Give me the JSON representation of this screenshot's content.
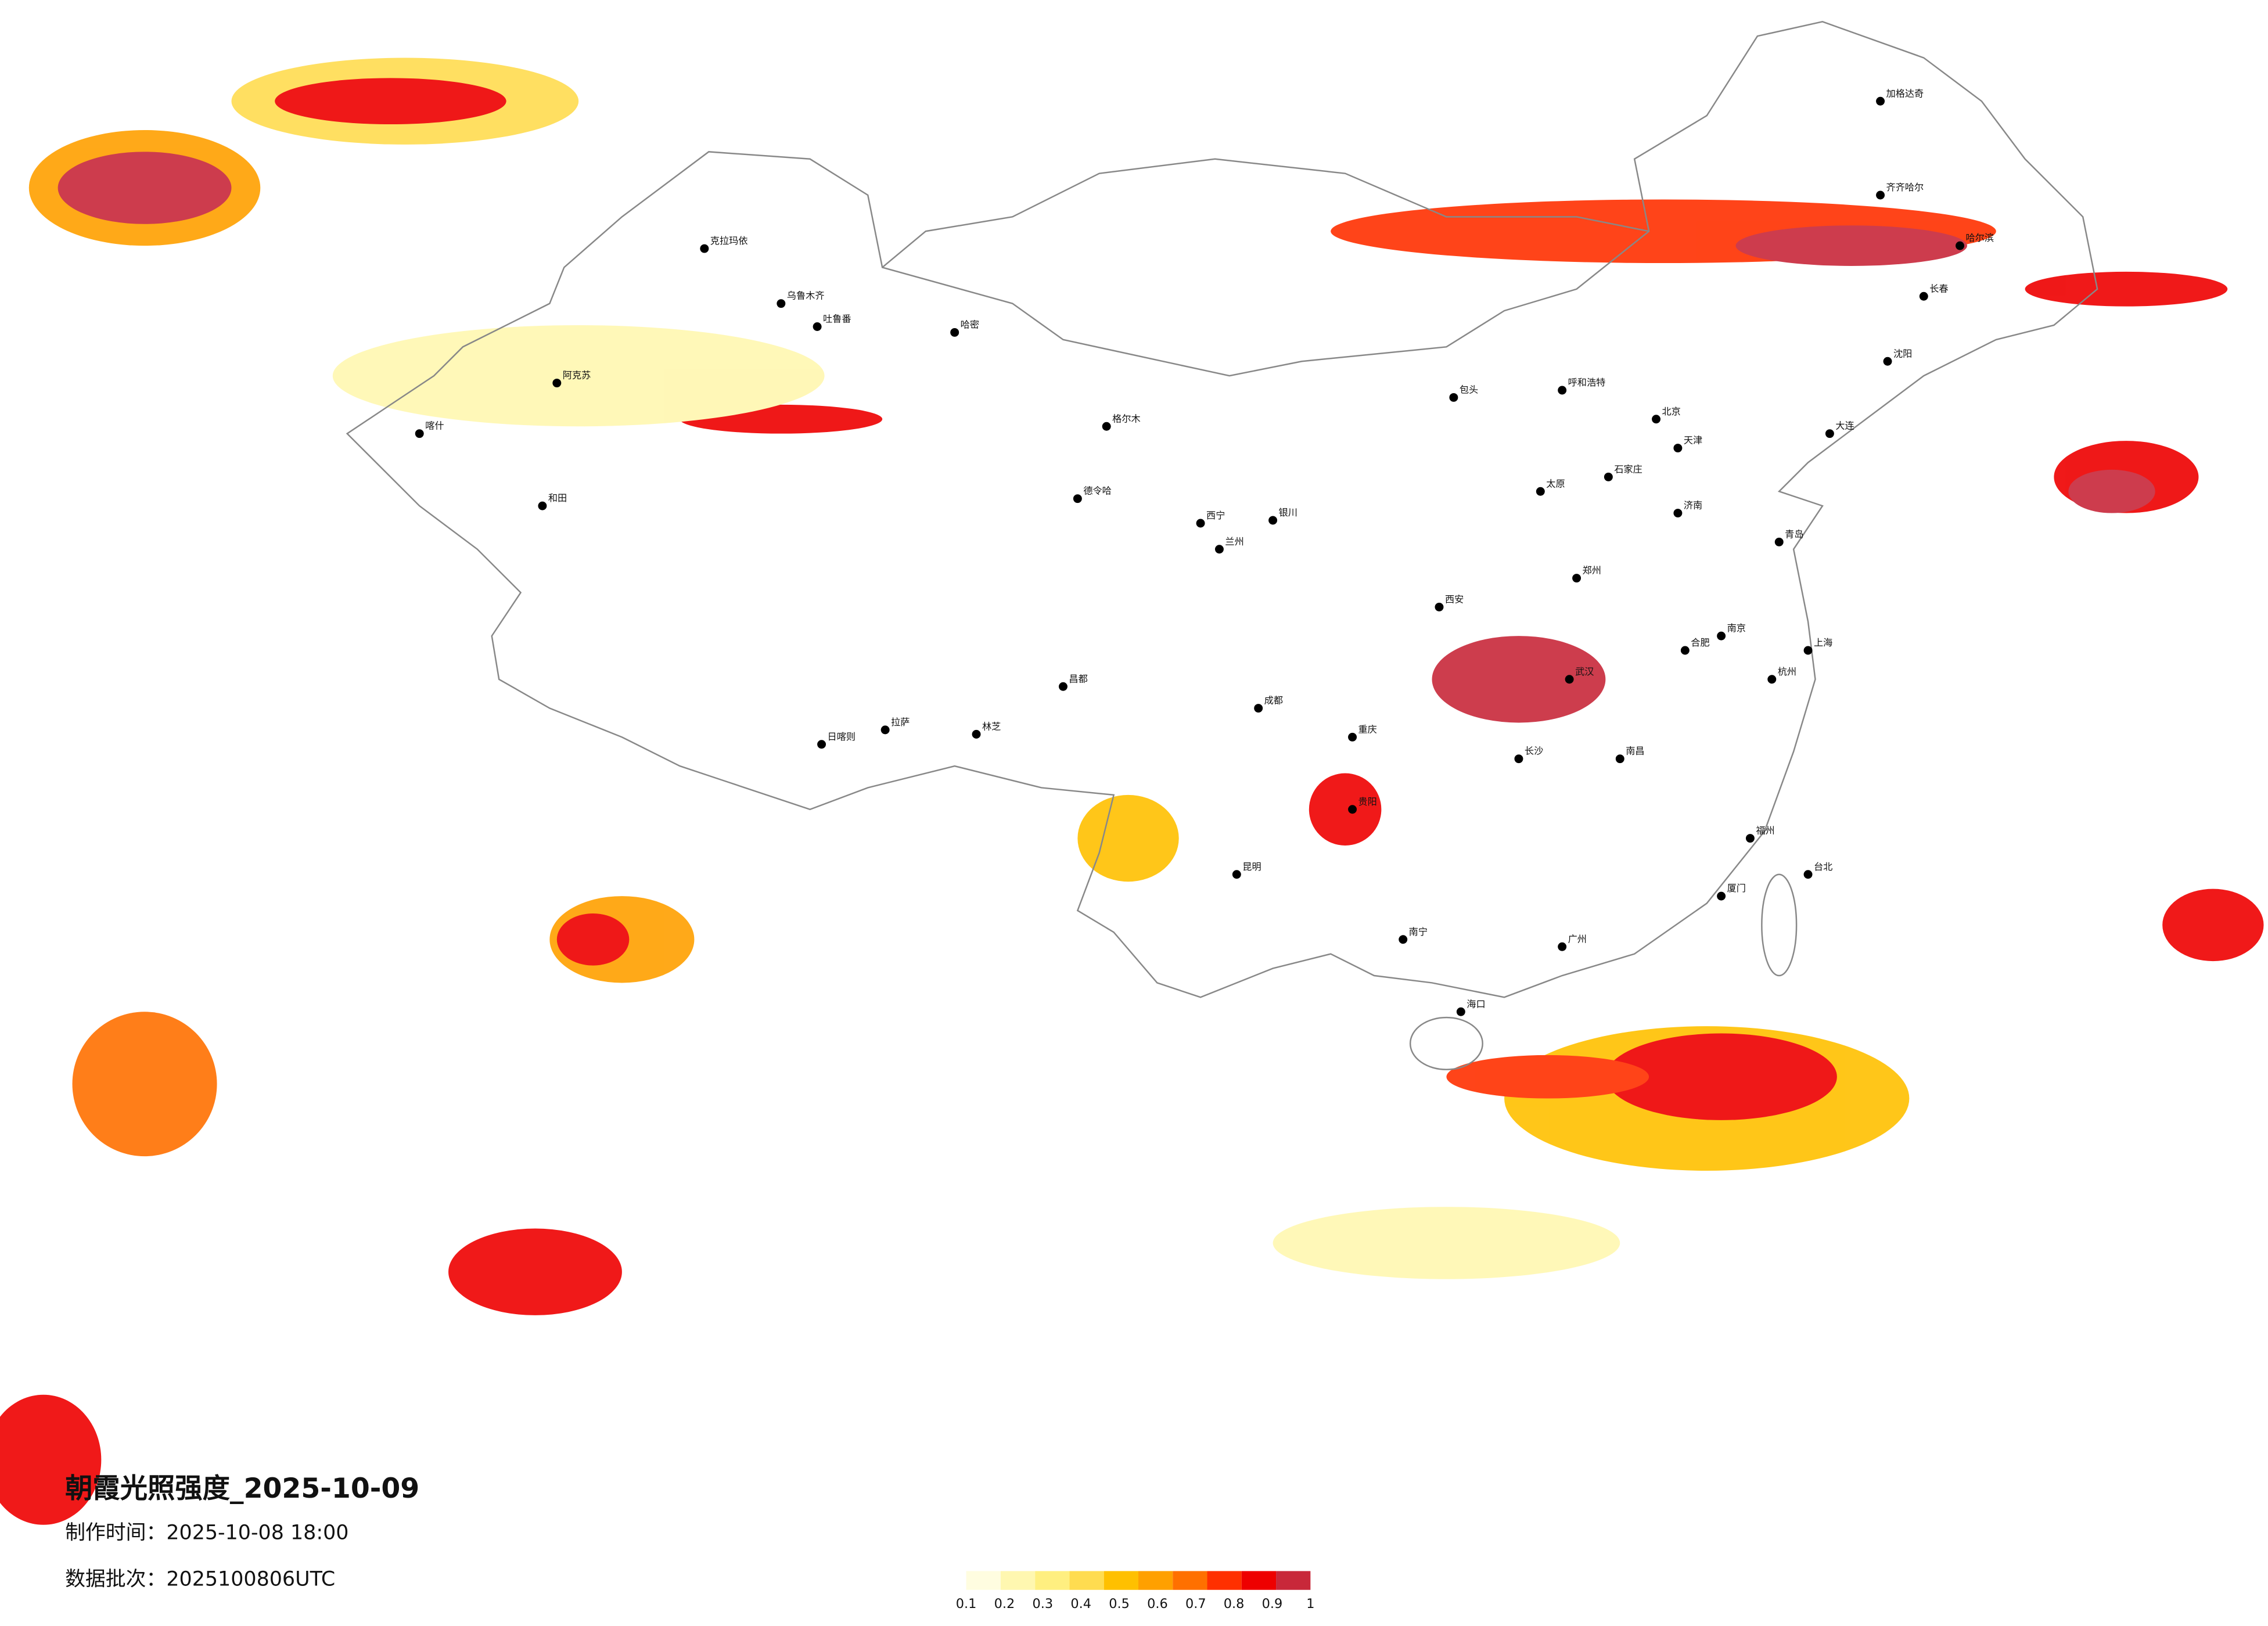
{
  "title": "朝霞光照强度_2025-10-09",
  "made_time": "制作时间：2025-10-08 18:00",
  "data_batch": "数据批次：2025100806UTC",
  "legend": {
    "ticks": [
      0.1,
      0.2,
      0.3,
      0.4,
      0.5,
      0.6,
      0.7,
      0.8,
      0.9,
      1
    ],
    "colors": [
      "#fffde0",
      "#fff7b0",
      "#ffef80",
      "#ffdc50",
      "#ffc000",
      "#ffa000",
      "#ff7000",
      "#ff3000",
      "#ee0000",
      "#c8283a"
    ]
  },
  "cities": [
    "克拉玛依",
    "乌鲁木齐",
    "吐鲁番",
    "哈密",
    "阿克苏",
    "喀什",
    "和田",
    "格尔木",
    "德令哈",
    "拉萨",
    "日喀则",
    "林芝",
    "昌都",
    "西宁",
    "兰州",
    "银川",
    "呼和浩特",
    "包头",
    "北京",
    "天津",
    "石家庄",
    "太原",
    "西安",
    "郑州",
    "济南",
    "青岛",
    "南京",
    "上海",
    "杭州",
    "合肥",
    "武汉",
    "长沙",
    "南昌",
    "福州",
    "厦门",
    "广州",
    "南宁",
    "海口",
    "贵阳",
    "昆明",
    "成都",
    "重庆",
    "哈尔滨",
    "长春",
    "沈阳",
    "大连",
    "台北",
    "齐齐哈尔",
    "加格达奇"
  ]
}
